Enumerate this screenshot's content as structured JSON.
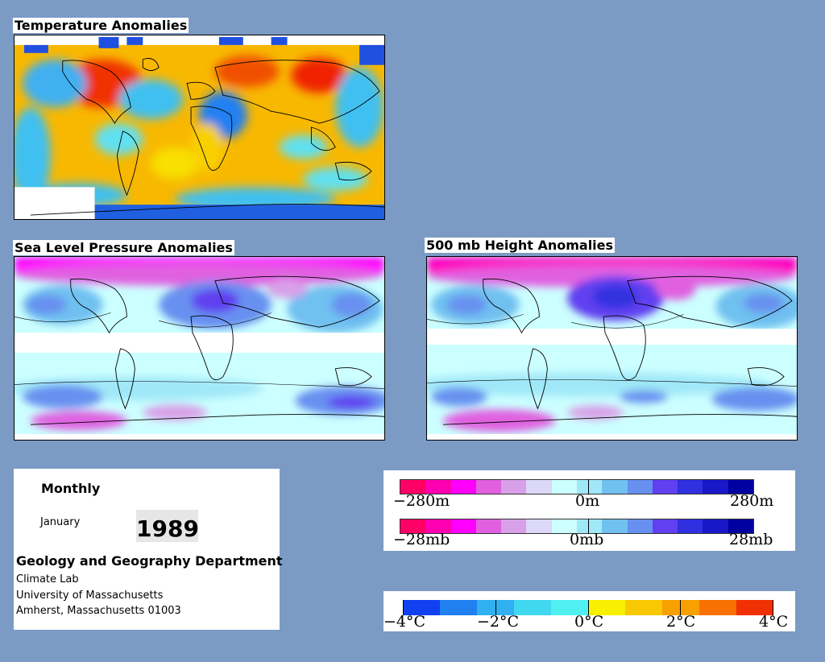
{
  "panels": {
    "temperature": {
      "title": "Temperature Anomalies"
    },
    "slp": {
      "title": "Sea Level Pressure Anomalies"
    },
    "height": {
      "title": "500 mb Height Anomalies"
    }
  },
  "info": {
    "period": "Monthly",
    "month": "January",
    "year": "1989",
    "department": "Geology and Geography Department",
    "lab": "Climate Lab",
    "university": "University of Massachusetts",
    "address": "Amherst, Massachusetts 01003"
  },
  "legend_height": {
    "min_label": "−280m",
    "mid_label": "0m",
    "max_label": "280m",
    "colors": [
      "#ff0066",
      "#ff00b0",
      "#ff00ff",
      "#e060e0",
      "#d8a0e8",
      "#dcd8f8",
      "#ccffff",
      "#a0e8f8",
      "#70c0f0",
      "#6890f0",
      "#6040f0",
      "#3030e0",
      "#1818c8",
      "#0000a0"
    ]
  },
  "legend_pressure": {
    "min_label": "−28mb",
    "mid_label": "0mb",
    "max_label": "28mb",
    "colors": [
      "#ff0066",
      "#ff00b0",
      "#ff00ff",
      "#e060e0",
      "#d8a0e8",
      "#dcd8f8",
      "#ccffff",
      "#a0e8f8",
      "#70c0f0",
      "#6890f0",
      "#6040f0",
      "#3030e0",
      "#1818c8",
      "#0000a0"
    ]
  },
  "legend_temperature": {
    "labels": [
      "−4°C",
      "−2°C",
      "0°C",
      "2°C",
      "4°C"
    ],
    "colors": [
      "#1040f0",
      "#2080f0",
      "#30b0f0",
      "#40d8f0",
      "#50f0f0",
      "#f8f000",
      "#f8c800",
      "#f8a000",
      "#f87000",
      "#f03000"
    ]
  }
}
